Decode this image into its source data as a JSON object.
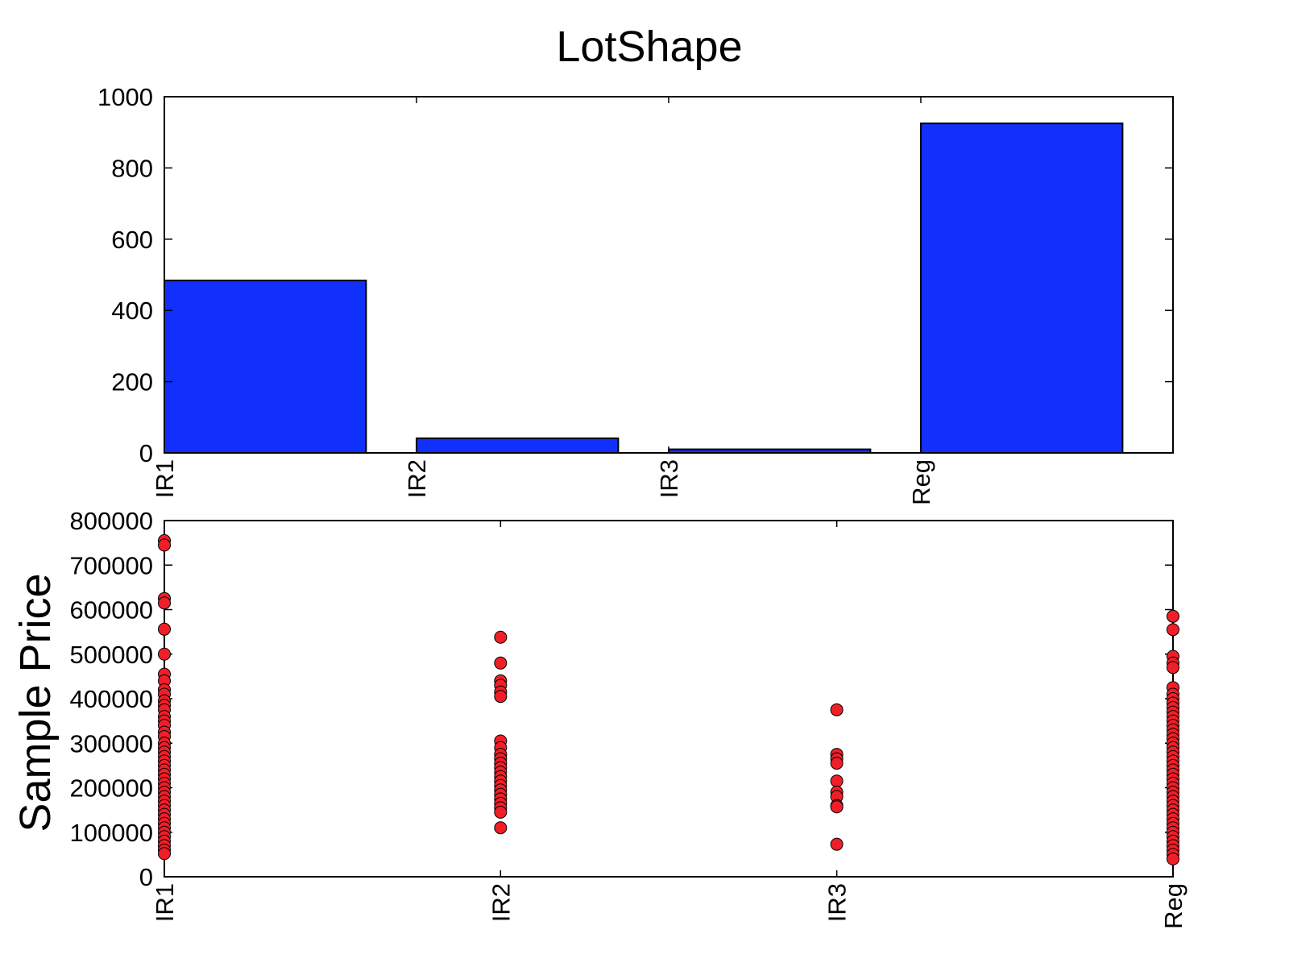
{
  "figure": {
    "title": "LotShape",
    "colors": {
      "bar_fill": "#1230FB",
      "point_fill": "#F01E28",
      "stroke": "#000000"
    }
  },
  "chart_data": [
    {
      "type": "bar",
      "categories": [
        "IR1",
        "IR2",
        "IR3",
        "Reg"
      ],
      "values": [
        484,
        41,
        10,
        925
      ],
      "xlabel": "",
      "ylabel": "",
      "ylim": [
        0,
        1000
      ],
      "yticks": [
        "0",
        "200",
        "400",
        "600",
        "800",
        "1000"
      ],
      "grid": false
    },
    {
      "type": "scatter",
      "categories": [
        "IR1",
        "IR2",
        "IR3",
        "Reg"
      ],
      "ylabel": "Sample Price",
      "ylim": [
        0,
        800000
      ],
      "yticks": [
        "0",
        "100000",
        "200000",
        "300000",
        "400000",
        "500000",
        "600000",
        "700000",
        "800000"
      ],
      "grid": false,
      "series": [
        {
          "category": "IR1",
          "values": [
            755000,
            745000,
            625000,
            615000,
            556000,
            500000,
            455000,
            440000,
            420000,
            410000,
            395000,
            385000,
            375000,
            360000,
            350000,
            340000,
            325000,
            315000,
            300000,
            290000,
            280000,
            270000,
            260000,
            250000,
            240000,
            230000,
            220000,
            210000,
            200000,
            190000,
            180000,
            170000,
            160000,
            150000,
            140000,
            130000,
            120000,
            110000,
            100000,
            90000,
            80000,
            70000,
            60000,
            52000
          ]
        },
        {
          "category": "IR2",
          "values": [
            538000,
            480000,
            440000,
            430000,
            415000,
            405000,
            305000,
            290000,
            275000,
            265000,
            255000,
            245000,
            235000,
            225000,
            215000,
            205000,
            195000,
            185000,
            175000,
            165000,
            155000,
            145000,
            110000
          ]
        },
        {
          "category": "IR3",
          "values": [
            375000,
            275000,
            265000,
            255000,
            215000,
            190000,
            180000,
            160000,
            157000,
            73000
          ]
        },
        {
          "category": "Reg",
          "values": [
            585000,
            555000,
            495000,
            480000,
            470000,
            425000,
            410000,
            400000,
            390000,
            380000,
            370000,
            360000,
            350000,
            340000,
            330000,
            320000,
            310000,
            300000,
            290000,
            280000,
            270000,
            260000,
            250000,
            240000,
            230000,
            220000,
            210000,
            200000,
            190000,
            180000,
            170000,
            160000,
            150000,
            140000,
            130000,
            120000,
            110000,
            100000,
            90000,
            80000,
            70000,
            60000,
            50000,
            40000
          ]
        }
      ]
    }
  ]
}
